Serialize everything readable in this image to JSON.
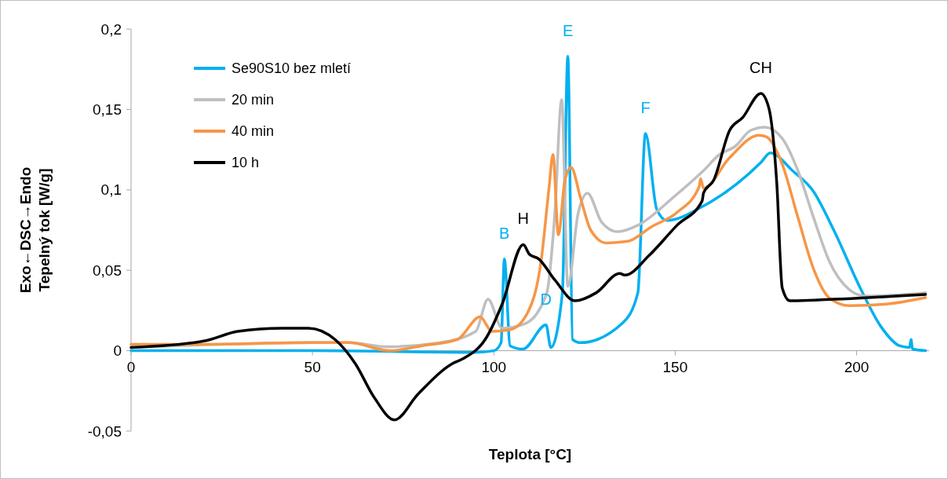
{
  "chart_data": {
    "type": "line",
    "xlabel": "Teplota [°C]",
    "ylabel": "Exo←DSC→Endo\nTepelný tok [W/g]",
    "xlim": [
      0,
      220
    ],
    "ylim": [
      -0.05,
      0.2
    ],
    "xticks": [
      0,
      50,
      100,
      150,
      200
    ],
    "yticks": [
      {
        "value": -0.05,
        "label": "-0,05"
      },
      0,
      {
        "value": 0.05,
        "label": "0,05"
      },
      {
        "value": 0.1,
        "label": "0,1"
      },
      {
        "value": 0.15,
        "label": "0,15"
      },
      {
        "value": 0.2,
        "label": "0,2"
      }
    ],
    "grid": false,
    "legend": "top left",
    "marker": "none",
    "line_style": "solid",
    "series": [
      {
        "name": "Se90S10 bez mletí",
        "color": "#00b0f0",
        "x": [
          0,
          50,
          95,
          100,
          102,
          102.9,
          104.5,
          108,
          114.4,
          115.7,
          118.9,
          120.4,
          121.7,
          123.9,
          135.4,
          139.7,
          141.8,
          144.9,
          147.7,
          157.8,
          173.6,
          176.2,
          182.3,
          188.1,
          193.7,
          201,
          206.7,
          211.9,
          214.6,
          215,
          215.4,
          219
        ],
        "values": [
          0,
          0,
          -0.001,
          0,
          0.005,
          0.057,
          0.003,
          0.001,
          0.016,
          0.002,
          0.036,
          0.183,
          0.007,
          0.005,
          0.017,
          0.036,
          0.135,
          0.088,
          0.081,
          0.09,
          0.117,
          0.123,
          0.112,
          0.099,
          0.075,
          0.039,
          0.015,
          0.003,
          0.002,
          0.007,
          0.001,
          0
        ]
      },
      {
        "name": "20 min",
        "color": "#bfbfbf",
        "x": [
          0,
          50,
          60,
          70.5,
          85,
          95,
          98.4,
          102.3,
          108.8,
          114.6,
          116.8,
          118.7,
          120.4,
          123.2,
          125.8,
          129.7,
          134.1,
          139.7,
          149.8,
          157.8,
          162.2,
          166.5,
          170.8,
          174.7,
          179.5,
          183.8,
          188.1,
          192.4,
          198,
          202.4,
          219
        ],
        "values": [
          0.002,
          0.005,
          0.005,
          0.0025,
          0.005,
          0.012,
          0.032,
          0.014,
          0.017,
          0.036,
          0.085,
          0.156,
          0.04,
          0.085,
          0.098,
          0.08,
          0.074,
          0.078,
          0.096,
          0.112,
          0.122,
          0.127,
          0.137,
          0.139,
          0.132,
          0.112,
          0.083,
          0.056,
          0.038,
          0.034,
          0.036
        ]
      },
      {
        "name": "40 min",
        "color": "#f79646",
        "x": [
          0,
          20,
          50,
          60,
          71.4,
          80,
          90,
          96.2,
          99.5,
          104.4,
          109.4,
          113.1,
          115.2,
          116.3,
          117.8,
          119.6,
          121.3,
          123.9,
          126.7,
          131,
          136.9,
          143.4,
          150.5,
          156.6,
          157,
          157.8,
          165,
          173,
          175.1,
          179.5,
          183.8,
          188.1,
          192.4,
          198,
          208.2,
          219
        ],
        "values": [
          0.004,
          0.004,
          0.005,
          0.005,
          0,
          0.003,
          0.007,
          0.021,
          0.012,
          0.013,
          0.024,
          0.057,
          0.101,
          0.122,
          0.072,
          0.106,
          0.114,
          0.095,
          0.075,
          0.067,
          0.068,
          0.077,
          0.086,
          0.102,
          0.107,
          0.101,
          0.12,
          0.134,
          0.133,
          0.116,
          0.083,
          0.051,
          0.033,
          0.028,
          0.029,
          0.033
        ]
      },
      {
        "name": "10 h",
        "color": "#000000",
        "x": [
          0,
          20.1,
          29.4,
          41.7,
          48.9,
          56.2,
          61.8,
          67,
          72.6,
          79.1,
          88.6,
          91.5,
          97.9,
          102.3,
          108.1,
          109.8,
          112.4,
          116.8,
          122.4,
          128.2,
          134.7,
          136.2,
          142.7,
          150.5,
          157.4,
          157.8,
          160.6,
          165,
          168.6,
          173.6,
          175.8,
          178,
          179.5,
          181.6,
          193.7,
          219
        ],
        "values": [
          0.002,
          0.006,
          0.012,
          0.014,
          0.014,
          0.007,
          -0.008,
          -0.029,
          -0.043,
          -0.027,
          -0.008,
          -0.005,
          0.008,
          0.029,
          0.066,
          0.06,
          0.057,
          0.044,
          0.031,
          0.036,
          0.048,
          0.047,
          0.059,
          0.078,
          0.093,
          0.098,
          0.106,
          0.137,
          0.145,
          0.16,
          0.151,
          0.104,
          0.039,
          0.031,
          0.032,
          0.035
        ]
      }
    ],
    "annotations": [
      {
        "text": "B",
        "x": 102.9,
        "y": 0.057
      },
      {
        "text": "H",
        "x": 108.1,
        "y": 0.066
      },
      {
        "text": "D",
        "x": 114.4,
        "y": 0.016
      },
      {
        "text": "E",
        "x": 120.4,
        "y": 0.183
      },
      {
        "text": "F",
        "x": 141.8,
        "y": 0.135
      },
      {
        "text": "CH",
        "x": 173.6,
        "y": 0.16
      }
    ]
  }
}
